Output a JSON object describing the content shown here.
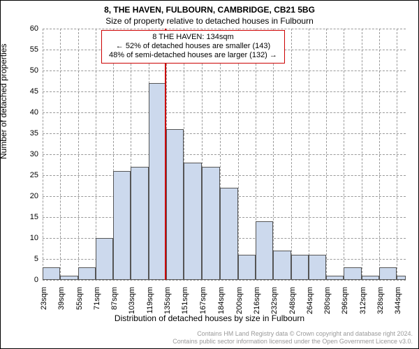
{
  "title_line1": "8, THE HAVEN, FULBOURN, CAMBRIDGE, CB21 5BG",
  "title_line2": "Size of property relative to detached houses in Fulbourn",
  "legend": {
    "line1": "8 THE HAVEN: 134sqm",
    "line2": "← 52% of detached houses are smaller (143)",
    "line3": "48% of semi-detached houses are larger (132) →"
  },
  "y_label": "Number of detached properties",
  "x_label": "Distribution of detached houses by size in Fulbourn",
  "footer_line1": "Contains HM Land Registry data © Crown copyright and database right 2024.",
  "footer_line2": "Contains public sector information licensed under the Open Government Licence v3.0.",
  "chart": {
    "type": "histogram",
    "ylim": [
      0,
      60
    ],
    "ytick_step": 5,
    "x_ticks": [
      "23sqm",
      "39sqm",
      "55sqm",
      "71sqm",
      "87sqm",
      "103sqm",
      "119sqm",
      "135sqm",
      "151sqm",
      "167sqm",
      "184sqm",
      "200sqm",
      "216sqm",
      "232sqm",
      "248sqm",
      "264sqm",
      "280sqm",
      "296sqm",
      "312sqm",
      "328sqm",
      "344sqm"
    ],
    "x_range": [
      23,
      352
    ],
    "bar_color": "#ccd9ed",
    "bar_border_color": "#555555",
    "grid_color": "#999999",
    "background_color": "#ffffff",
    "marker_color": "#cc0000",
    "marker_x": 134,
    "bars": [
      {
        "x": 23,
        "w": 16,
        "v": 3
      },
      {
        "x": 39,
        "w": 16,
        "v": 1
      },
      {
        "x": 55,
        "w": 16,
        "v": 3
      },
      {
        "x": 71,
        "w": 16,
        "v": 10
      },
      {
        "x": 87,
        "w": 16,
        "v": 26
      },
      {
        "x": 103,
        "w": 16,
        "v": 27
      },
      {
        "x": 119,
        "w": 16,
        "v": 47
      },
      {
        "x": 135,
        "w": 16,
        "v": 36
      },
      {
        "x": 151,
        "w": 16,
        "v": 28
      },
      {
        "x": 167,
        "w": 17,
        "v": 27
      },
      {
        "x": 184,
        "w": 16,
        "v": 22
      },
      {
        "x": 200,
        "w": 16,
        "v": 6
      },
      {
        "x": 216,
        "w": 16,
        "v": 14
      },
      {
        "x": 232,
        "w": 16,
        "v": 7
      },
      {
        "x": 248,
        "w": 16,
        "v": 6
      },
      {
        "x": 264,
        "w": 16,
        "v": 6
      },
      {
        "x": 280,
        "w": 16,
        "v": 1
      },
      {
        "x": 296,
        "w": 16,
        "v": 3
      },
      {
        "x": 312,
        "w": 16,
        "v": 1
      },
      {
        "x": 328,
        "w": 16,
        "v": 3
      },
      {
        "x": 344,
        "w": 8,
        "v": 1
      }
    ],
    "title_fontsize": 12,
    "label_fontsize": 12,
    "tick_fontsize": 11
  }
}
